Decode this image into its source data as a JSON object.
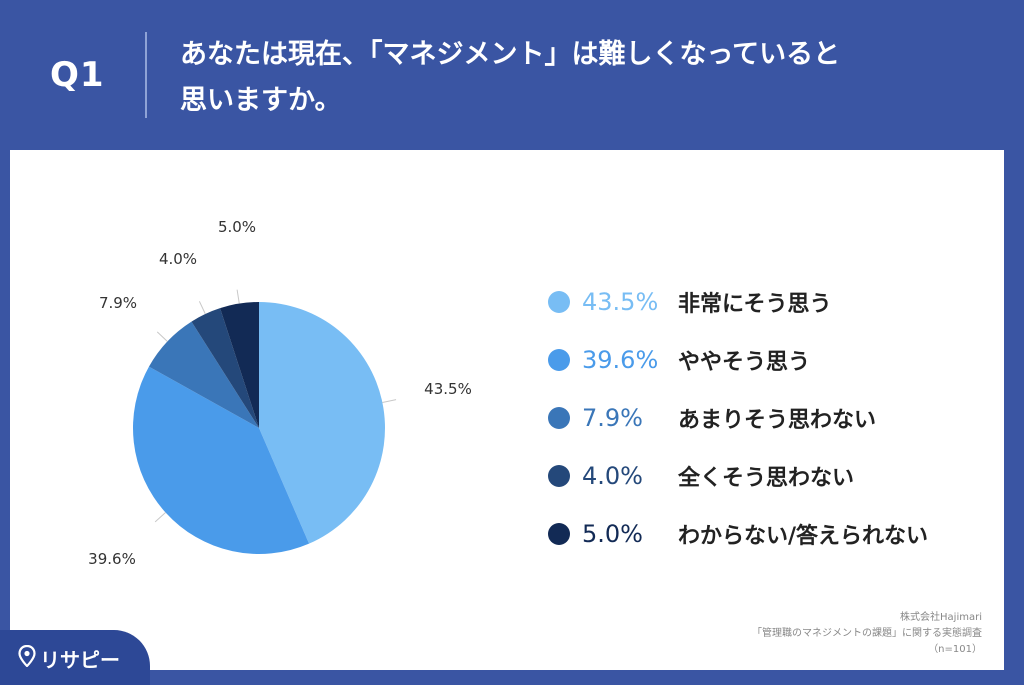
{
  "header": {
    "q_label": "Q1",
    "question_line1": "あなたは現在、「マネジメント」は難しくなっていると",
    "question_line2": "思いますか。"
  },
  "chart_data": {
    "type": "pie",
    "categories": [
      "非常にそう思う",
      "ややそう思う",
      "あまりそう思わない",
      "全くそう思わない",
      "わからない/答えられない"
    ],
    "values": [
      43.5,
      39.6,
      7.9,
      4.0,
      5.0
    ],
    "value_labels": [
      "43.5%",
      "39.6%",
      "7.9%",
      "4.0%",
      "5.0%"
    ],
    "colors": [
      "#78bdf4",
      "#4a9bea",
      "#3a76b8",
      "#24487a",
      "#122a55"
    ],
    "legend_placement": "right",
    "start": "12 o'clock, clockwise"
  },
  "source": {
    "line1": "株式会社Hajimari",
    "line2": "「管理職のマネジメントの課題」に関する実態調査",
    "line3": "（n=101）"
  },
  "logo": {
    "text": "リサピー",
    "icon": "pin-icon"
  }
}
